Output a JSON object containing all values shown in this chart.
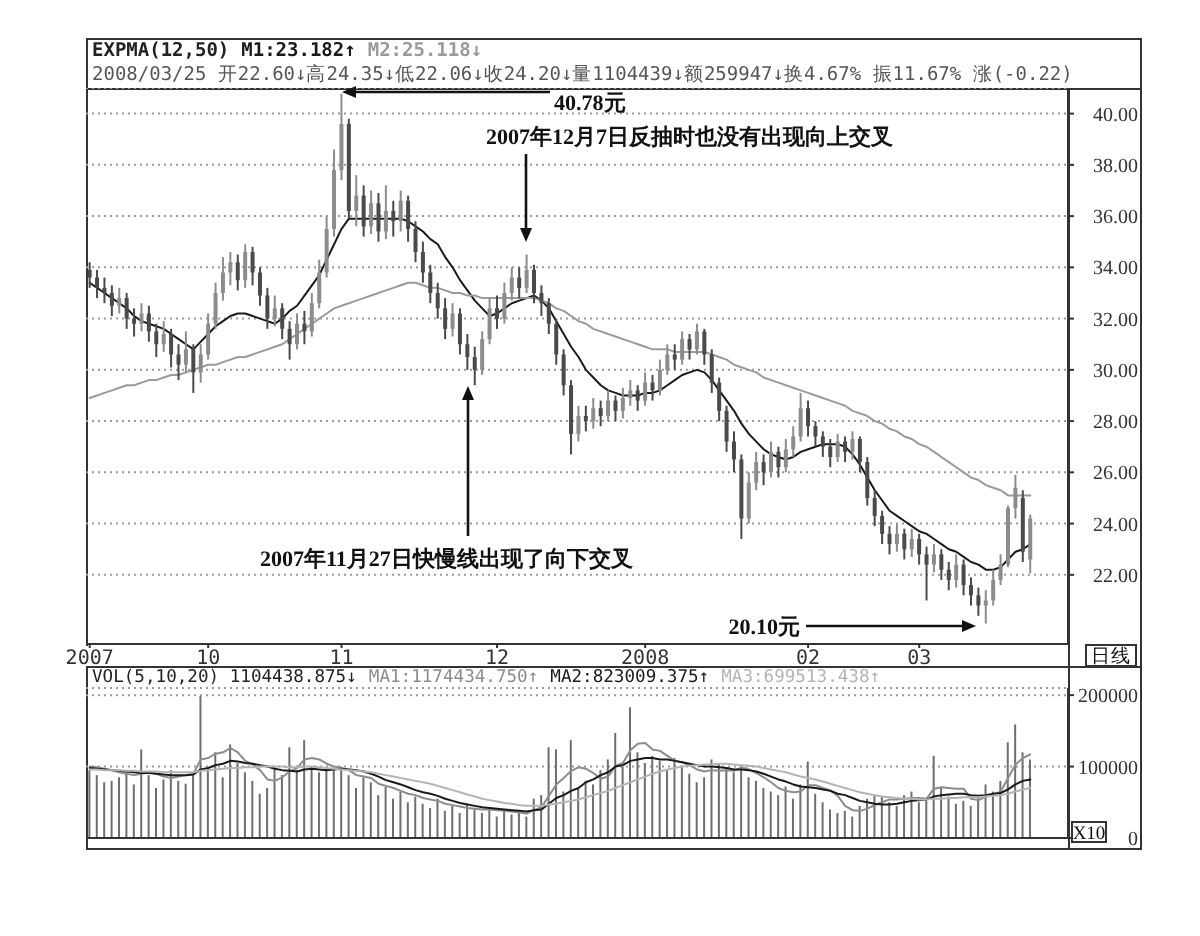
{
  "chart_data": [
    {
      "type": "candlestick",
      "title": "EXPMA(12,50)",
      "subtitle": "2008/03/25 开22.60↓高24.35↓低22.06↓收24.20↓量1104439↓额259947↓换4.67% 振11.67% 涨(-0.22)",
      "categories": [
        "2007",
        null,
        null,
        null,
        null,
        null,
        null,
        null,
        null,
        null,
        null,
        null,
        null,
        null,
        null,
        null,
        "10",
        null,
        null,
        null,
        null,
        null,
        null,
        null,
        null,
        null,
        null,
        null,
        null,
        null,
        null,
        null,
        null,
        null,
        "11",
        null,
        null,
        null,
        null,
        null,
        null,
        null,
        null,
        null,
        null,
        null,
        null,
        null,
        null,
        null,
        null,
        null,
        null,
        null,
        null,
        "12",
        null,
        null,
        null,
        null,
        null,
        null,
        null,
        null,
        null,
        null,
        null,
        null,
        null,
        null,
        null,
        null,
        null,
        null,
        null,
        "2008",
        null,
        null,
        null,
        null,
        null,
        null,
        null,
        null,
        null,
        null,
        null,
        null,
        null,
        null,
        null,
        null,
        null,
        null,
        null,
        null,
        null,
        "02",
        null,
        null,
        null,
        null,
        null,
        null,
        null,
        null,
        null,
        null,
        null,
        null,
        null,
        null,
        "03",
        null,
        null,
        null,
        null,
        null,
        null,
        null,
        null,
        null,
        null,
        null,
        null,
        null,
        null,
        null
      ],
      "ohlc": [
        [
          33.9,
          34.2,
          33.2,
          33.6
        ],
        [
          33.6,
          33.9,
          32.8,
          33.2
        ],
        [
          33.2,
          33.6,
          32.6,
          33.0
        ],
        [
          33.0,
          33.3,
          32.1,
          32.5
        ],
        [
          32.5,
          33.2,
          32.2,
          32.8
        ],
        [
          32.8,
          33.0,
          31.6,
          32.0
        ],
        [
          32.0,
          32.4,
          31.3,
          31.8
        ],
        [
          31.8,
          32.6,
          31.5,
          32.2
        ],
        [
          32.2,
          32.5,
          31.1,
          31.5
        ],
        [
          31.5,
          31.8,
          30.5,
          31.0
        ],
        [
          31.0,
          31.9,
          30.7,
          31.4
        ],
        [
          31.4,
          31.6,
          30.1,
          30.6
        ],
        [
          30.6,
          31.0,
          29.6,
          30.2
        ],
        [
          30.2,
          31.5,
          29.9,
          30.8
        ],
        [
          30.8,
          31.0,
          29.1,
          29.9
        ],
        [
          29.9,
          31.0,
          29.5,
          30.6
        ],
        [
          30.6,
          32.2,
          30.4,
          31.8
        ],
        [
          31.8,
          33.4,
          31.6,
          33.0
        ],
        [
          33.0,
          34.4,
          32.7,
          33.8
        ],
        [
          33.8,
          34.6,
          33.3,
          34.2
        ],
        [
          34.2,
          34.5,
          33.1,
          33.5
        ],
        [
          33.5,
          34.9,
          33.2,
          34.6
        ],
        [
          34.6,
          34.8,
          33.3,
          33.8
        ],
        [
          33.8,
          34.0,
          32.5,
          32.9
        ],
        [
          32.9,
          33.2,
          31.6,
          32.0
        ],
        [
          32.0,
          32.9,
          31.7,
          32.4
        ],
        [
          32.4,
          32.6,
          31.2,
          31.6
        ],
        [
          31.6,
          31.9,
          30.4,
          31.0
        ],
        [
          31.0,
          32.2,
          30.8,
          31.8
        ],
        [
          31.8,
          32.3,
          31.0,
          31.5
        ],
        [
          31.5,
          33.0,
          31.3,
          32.6
        ],
        [
          32.6,
          34.3,
          32.4,
          33.8
        ],
        [
          33.8,
          36.0,
          33.6,
          35.5
        ],
        [
          35.5,
          38.6,
          35.2,
          37.8
        ],
        [
          37.8,
          40.78,
          37.4,
          39.6
        ],
        [
          39.6,
          39.8,
          35.9,
          36.2
        ],
        [
          36.2,
          37.6,
          35.6,
          36.8
        ],
        [
          36.8,
          37.2,
          35.2,
          35.6
        ],
        [
          35.6,
          37.0,
          35.3,
          36.5
        ],
        [
          36.5,
          36.9,
          35.0,
          35.4
        ],
        [
          35.4,
          37.2,
          35.1,
          36.2
        ],
        [
          36.2,
          36.6,
          35.2,
          35.8
        ],
        [
          35.8,
          37.0,
          35.4,
          36.6
        ],
        [
          36.6,
          36.8,
          35.0,
          35.5
        ],
        [
          35.5,
          35.8,
          34.2,
          34.6
        ],
        [
          34.6,
          35.0,
          33.4,
          33.8
        ],
        [
          33.8,
          34.1,
          32.6,
          33.0
        ],
        [
          33.0,
          33.4,
          32.0,
          32.4
        ],
        [
          32.4,
          32.8,
          31.2,
          31.6
        ],
        [
          31.6,
          32.6,
          31.3,
          32.2
        ],
        [
          32.2,
          32.4,
          30.6,
          31.0
        ],
        [
          31.0,
          31.4,
          30.0,
          30.5
        ],
        [
          30.5,
          30.9,
          29.4,
          30.0
        ],
        [
          30.0,
          31.5,
          29.8,
          31.2
        ],
        [
          31.2,
          32.8,
          31.0,
          32.4
        ],
        [
          32.4,
          32.9,
          31.6,
          32.0
        ],
        [
          32.0,
          33.4,
          31.8,
          33.0
        ],
        [
          33.0,
          34.0,
          32.7,
          33.6
        ],
        [
          33.6,
          34.0,
          32.8,
          33.2
        ],
        [
          33.2,
          34.5,
          33.0,
          33.9
        ],
        [
          33.9,
          34.1,
          32.6,
          33.0
        ],
        [
          33.0,
          33.3,
          32.1,
          32.6
        ],
        [
          32.6,
          32.8,
          31.4,
          31.8
        ],
        [
          31.8,
          32.0,
          30.2,
          30.6
        ],
        [
          30.6,
          30.8,
          29.0,
          29.4
        ],
        [
          29.4,
          29.6,
          26.7,
          27.5
        ],
        [
          27.5,
          28.6,
          27.2,
          28.2
        ],
        [
          28.2,
          28.6,
          27.6,
          28.0
        ],
        [
          28.0,
          28.9,
          27.7,
          28.5
        ],
        [
          28.5,
          28.8,
          27.8,
          28.2
        ],
        [
          28.2,
          29.2,
          28.0,
          28.8
        ],
        [
          28.8,
          29.0,
          28.0,
          28.4
        ],
        [
          28.4,
          29.3,
          28.1,
          28.9
        ],
        [
          28.9,
          29.6,
          28.6,
          29.2
        ],
        [
          29.2,
          29.4,
          28.4,
          28.8
        ],
        [
          28.8,
          29.9,
          28.6,
          29.5
        ],
        [
          29.5,
          29.8,
          28.8,
          29.2
        ],
        [
          29.2,
          30.4,
          29.0,
          30.0
        ],
        [
          30.0,
          31.0,
          29.8,
          30.6
        ],
        [
          30.6,
          31.0,
          30.0,
          30.4
        ],
        [
          30.4,
          31.5,
          30.2,
          31.2
        ],
        [
          31.2,
          31.4,
          30.4,
          30.8
        ],
        [
          30.8,
          31.8,
          30.6,
          31.5
        ],
        [
          31.5,
          31.6,
          30.2,
          30.6
        ],
        [
          30.6,
          30.8,
          29.1,
          29.5
        ],
        [
          29.5,
          29.7,
          28.0,
          28.4
        ],
        [
          28.4,
          28.6,
          26.8,
          27.2
        ],
        [
          27.2,
          27.6,
          26.0,
          26.5
        ],
        [
          26.5,
          26.7,
          23.4,
          24.2
        ],
        [
          24.2,
          26.0,
          24.0,
          25.6
        ],
        [
          25.6,
          26.8,
          25.3,
          26.4
        ],
        [
          26.4,
          26.7,
          25.5,
          26.0
        ],
        [
          26.0,
          27.2,
          25.8,
          26.8
        ],
        [
          26.8,
          27.0,
          25.8,
          26.2
        ],
        [
          26.2,
          27.3,
          26.0,
          26.9
        ],
        [
          26.9,
          27.8,
          26.6,
          27.4
        ],
        [
          27.4,
          29.1,
          27.2,
          28.5
        ],
        [
          28.5,
          28.8,
          27.4,
          27.8
        ],
        [
          27.8,
          28.0,
          27.0,
          27.4
        ],
        [
          27.4,
          27.6,
          26.6,
          27.0
        ],
        [
          27.0,
          27.3,
          26.2,
          26.6
        ],
        [
          26.6,
          27.5,
          26.4,
          27.2
        ],
        [
          27.2,
          27.4,
          26.4,
          26.8
        ],
        [
          26.8,
          27.6,
          26.5,
          27.3
        ],
        [
          27.3,
          27.4,
          26.0,
          26.4
        ],
        [
          26.4,
          26.6,
          24.7,
          25.0
        ],
        [
          25.0,
          25.3,
          23.9,
          24.3
        ],
        [
          24.3,
          24.5,
          23.2,
          23.6
        ],
        [
          23.6,
          23.9,
          22.8,
          23.2
        ],
        [
          23.2,
          24.0,
          22.9,
          23.6
        ],
        [
          23.6,
          23.8,
          22.6,
          23.0
        ],
        [
          23.0,
          23.8,
          22.7,
          23.4
        ],
        [
          23.4,
          23.6,
          22.4,
          22.8
        ],
        [
          22.8,
          23.1,
          21.0,
          22.4
        ],
        [
          22.4,
          23.2,
          22.1,
          22.8
        ],
        [
          22.8,
          23.0,
          21.8,
          22.2
        ],
        [
          22.2,
          22.5,
          21.4,
          21.8
        ],
        [
          21.8,
          22.8,
          21.5,
          22.4
        ],
        [
          22.4,
          22.6,
          21.2,
          21.6
        ],
        [
          21.6,
          21.9,
          20.8,
          21.2
        ],
        [
          21.2,
          21.5,
          20.4,
          20.8
        ],
        [
          20.8,
          21.4,
          20.1,
          21.0
        ],
        [
          21.0,
          22.2,
          20.8,
          21.8
        ],
        [
          21.8,
          22.8,
          21.6,
          22.4
        ],
        [
          22.4,
          24.7,
          22.3,
          24.6
        ],
        [
          24.6,
          25.9,
          24.2,
          25.4
        ],
        [
          25.0,
          25.3,
          22.5,
          22.9
        ],
        [
          22.6,
          24.35,
          22.06,
          24.2
        ]
      ],
      "colors": [
        "#4a4a4a",
        "#4a4a4a",
        "#4a4a4a",
        "#4a4a4a",
        "#8c8c8c",
        "#4a4a4a",
        "#4a4a4a",
        "#8c8c8c",
        "#4a4a4a",
        "#4a4a4a",
        "#8c8c8c",
        "#4a4a4a",
        "#4a4a4a",
        "#8c8c8c",
        "#4a4a4a",
        "#8c8c8c",
        "#8c8c8c",
        "#8c8c8c",
        "#8c8c8c",
        "#8c8c8c",
        "#4a4a4a",
        "#8c8c8c",
        "#4a4a4a",
        "#4a4a4a",
        "#4a4a4a",
        "#8c8c8c",
        "#4a4a4a",
        "#4a4a4a",
        "#8c8c8c",
        "#4a4a4a",
        "#8c8c8c",
        "#8c8c8c",
        "#8c8c8c",
        "#8c8c8c",
        "#8c8c8c",
        "#4a4a4a",
        "#8c8c8c",
        "#4a4a4a",
        "#8c8c8c",
        "#4a4a4a",
        "#8c8c8c",
        "#4a4a4a",
        "#8c8c8c",
        "#4a4a4a",
        "#4a4a4a",
        "#4a4a4a",
        "#4a4a4a",
        "#4a4a4a",
        "#4a4a4a",
        "#8c8c8c",
        "#4a4a4a",
        "#4a4a4a",
        "#4a4a4a",
        "#8c8c8c",
        "#8c8c8c",
        "#4a4a4a",
        "#8c8c8c",
        "#8c8c8c",
        "#4a4a4a",
        "#8c8c8c",
        "#4a4a4a",
        "#4a4a4a",
        "#4a4a4a",
        "#4a4a4a",
        "#4a4a4a",
        "#4a4a4a",
        "#8c8c8c",
        "#4a4a4a",
        "#8c8c8c",
        "#4a4a4a",
        "#8c8c8c",
        "#4a4a4a",
        "#8c8c8c",
        "#8c8c8c",
        "#4a4a4a",
        "#8c8c8c",
        "#4a4a4a",
        "#8c8c8c",
        "#8c8c8c",
        "#4a4a4a",
        "#8c8c8c",
        "#4a4a4a",
        "#8c8c8c",
        "#4a4a4a",
        "#4a4a4a",
        "#4a4a4a",
        "#4a4a4a",
        "#4a4a4a",
        "#4a4a4a",
        "#8c8c8c",
        "#8c8c8c",
        "#4a4a4a",
        "#8c8c8c",
        "#4a4a4a",
        "#8c8c8c",
        "#8c8c8c",
        "#8c8c8c",
        "#4a4a4a",
        "#4a4a4a",
        "#4a4a4a",
        "#4a4a4a",
        "#8c8c8c",
        "#4a4a4a",
        "#8c8c8c",
        "#4a4a4a",
        "#4a4a4a",
        "#4a4a4a",
        "#4a4a4a",
        "#4a4a4a",
        "#8c8c8c",
        "#4a4a4a",
        "#8c8c8c",
        "#4a4a4a",
        "#4a4a4a",
        "#8c8c8c",
        "#4a4a4a",
        "#4a4a4a",
        "#8c8c8c",
        "#4a4a4a",
        "#4a4a4a",
        "#4a4a4a",
        "#8c8c8c",
        "#8c8c8c",
        "#8c8c8c",
        "#8c8c8c",
        "#8c8c8c",
        "#4a4a4a",
        "#8c8c8c"
      ],
      "series": [
        {
          "name": "M1:23.182↑",
          "type": "line",
          "color": "#1a1a1a",
          "values": [
            33.4,
            33.2,
            33.0,
            32.8,
            32.6,
            32.4,
            32.1,
            31.9,
            31.8,
            31.7,
            31.6,
            31.4,
            31.2,
            31.0,
            30.8,
            31.1,
            31.4,
            31.7,
            31.9,
            32.1,
            32.2,
            32.2,
            32.1,
            32.0,
            31.9,
            31.8,
            32.0,
            32.3,
            32.5,
            32.9,
            33.3,
            33.7,
            34.3,
            34.9,
            35.5,
            35.9,
            35.9,
            35.9,
            35.9,
            35.9,
            35.9,
            35.9,
            35.9,
            35.8,
            35.6,
            35.4,
            35.1,
            34.9,
            34.4,
            34.0,
            33.5,
            33.1,
            32.7,
            32.4,
            32.1,
            32.2,
            32.4,
            32.6,
            32.7,
            32.8,
            32.9,
            32.7,
            32.4,
            31.9,
            31.4,
            30.9,
            30.5,
            30.0,
            29.7,
            29.4,
            29.2,
            29.1,
            29.0,
            29.0,
            29.0,
            29.1,
            29.1,
            29.2,
            29.4,
            29.6,
            29.8,
            29.9,
            30.0,
            29.9,
            29.6,
            29.2,
            28.8,
            28.4,
            27.9,
            27.5,
            27.2,
            26.9,
            26.7,
            26.6,
            26.5,
            26.6,
            26.8,
            26.9,
            27.0,
            27.1,
            27.1,
            27.1,
            27.0,
            26.7,
            26.3,
            25.8,
            25.3,
            24.9,
            24.5,
            24.3,
            24.1,
            23.9,
            23.7,
            23.6,
            23.4,
            23.2,
            23.0,
            22.9,
            22.7,
            22.5,
            22.4,
            22.2,
            22.2,
            22.3,
            22.6,
            22.9,
            23.0,
            23.2
          ]
        },
        {
          "name": "M2:25.118↓",
          "type": "line",
          "color": "#9a9a9a",
          "values": [
            28.9,
            29.0,
            29.1,
            29.2,
            29.3,
            29.4,
            29.4,
            29.5,
            29.6,
            29.6,
            29.7,
            29.8,
            29.8,
            29.9,
            30.0,
            30.1,
            30.2,
            30.2,
            30.3,
            30.4,
            30.5,
            30.5,
            30.6,
            30.7,
            30.8,
            30.9,
            31.0,
            31.2,
            31.4,
            31.6,
            31.8,
            32.0,
            32.2,
            32.4,
            32.5,
            32.6,
            32.7,
            32.8,
            32.9,
            33.0,
            33.1,
            33.2,
            33.3,
            33.4,
            33.4,
            33.3,
            33.2,
            33.2,
            33.1,
            33.0,
            33.0,
            32.9,
            32.9,
            32.8,
            32.8,
            32.8,
            32.8,
            32.8,
            32.8,
            32.8,
            32.8,
            32.7,
            32.6,
            32.4,
            32.3,
            32.1,
            31.9,
            31.8,
            31.6,
            31.5,
            31.4,
            31.3,
            31.2,
            31.1,
            31.0,
            30.9,
            30.8,
            30.8,
            30.8,
            30.7,
            30.7,
            30.7,
            30.7,
            30.7,
            30.6,
            30.5,
            30.4,
            30.2,
            30.1,
            30.0,
            29.9,
            29.7,
            29.6,
            29.5,
            29.4,
            29.3,
            29.2,
            29.1,
            29.0,
            28.9,
            28.8,
            28.7,
            28.6,
            28.4,
            28.3,
            28.2,
            28.0,
            27.9,
            27.7,
            27.6,
            27.4,
            27.3,
            27.1,
            27.0,
            26.8,
            26.6,
            26.4,
            26.2,
            26.0,
            25.8,
            25.7,
            25.5,
            25.4,
            25.3,
            25.1,
            25.1,
            25.1,
            25.1
          ]
        }
      ],
      "ylim": [
        19.3,
        41.0
      ],
      "yticks": [
        {
          "value": 22,
          "label": "22.00"
        },
        {
          "value": 24,
          "label": "24.00"
        },
        {
          "value": 26,
          "label": "26.00"
        },
        {
          "value": 28,
          "label": "28.00"
        },
        {
          "value": 30,
          "label": "30.00"
        },
        {
          "value": 32,
          "label": "32.00"
        },
        {
          "value": 34,
          "label": "34.00"
        },
        {
          "value": 36,
          "label": "36.00"
        },
        {
          "value": 38,
          "label": "38.00"
        },
        {
          "value": 40,
          "label": "40.00"
        }
      ],
      "grid": "y",
      "legend": "top left",
      "annotations": [
        "40.78元",
        "20.10元",
        "2007年12月7日反抽时也没有出现向上交叉",
        "2007年11月27日快慢线出现了向下交叉",
        "日线"
      ]
    },
    {
      "type": "bar",
      "title": "VOL(5,10,20) 1104438.875↓",
      "categories": [
        "2007",
        null,
        null,
        null,
        null,
        null,
        null,
        null,
        null,
        null,
        null,
        null,
        null,
        null,
        null,
        null,
        "10",
        null,
        null,
        null,
        null,
        null,
        null,
        null,
        null,
        null,
        null,
        null,
        null,
        null,
        null,
        null,
        null,
        null,
        "11",
        null,
        null,
        null,
        null,
        null,
        null,
        null,
        null,
        null,
        null,
        null,
        null,
        null,
        null,
        null,
        null,
        null,
        null,
        null,
        null,
        "12",
        null,
        null,
        null,
        null,
        null,
        null,
        null,
        null,
        null,
        null,
        null,
        null,
        null,
        null,
        null,
        null,
        null,
        null,
        null,
        "2008",
        null,
        null,
        null,
        null,
        null,
        null,
        null,
        null,
        null,
        null,
        null,
        null,
        null,
        null,
        null,
        null,
        null,
        null,
        null,
        null,
        null,
        "02",
        null,
        null,
        null,
        null,
        null,
        null,
        null,
        null,
        null,
        null,
        null,
        null,
        null,
        null,
        "03",
        null,
        null,
        null,
        null,
        null,
        null,
        null,
        null,
        null,
        null,
        null,
        null,
        null,
        null,
        null
      ],
      "series": [
        {
          "color": "#6e6e6e",
          "values": [
            95000,
            88000,
            78000,
            80000,
            85000,
            92000,
            75000,
            124000,
            88000,
            70000,
            82000,
            95000,
            80000,
            76000,
            90000,
            199000,
            98000,
            120000,
            85000,
            131000,
            105000,
            92000,
            80000,
            62000,
            70000,
            100000,
            88000,
            127000,
            95000,
            137000,
            100000,
            92000,
            98000,
            95000,
            100000,
            88000,
            70000,
            85000,
            78000,
            60000,
            72000,
            55000,
            65000,
            50000,
            58000,
            48000,
            42000,
            55000,
            38000,
            45000,
            35000,
            48000,
            40000,
            35000,
            42000,
            30000,
            38000,
            33000,
            36000,
            30000,
            55000,
            60000,
            127000,
            124000,
            65000,
            137000,
            70000,
            80000,
            75000,
            95000,
            110000,
            147000,
            100000,
            183000,
            120000,
            105000,
            115000,
            108000,
            95000,
            112000,
            100000,
            90000,
            78000,
            85000,
            110000,
            105000,
            98000,
            92000,
            100000,
            85000,
            80000,
            70000,
            65000,
            60000,
            72000,
            55000,
            75000,
            107000,
            62000,
            50000,
            40000,
            35000,
            38000,
            30000,
            45000,
            55000,
            60000,
            58000,
            50000,
            45000,
            60000,
            65000,
            50000,
            55000,
            115000,
            70000,
            58000,
            48000,
            52000,
            45000,
            60000,
            75000,
            65000,
            80000,
            134000,
            159000,
            120000,
            110000
          ]
        },
        {
          "name": "MA1:1174434.750↑",
          "type": "line",
          "color": "#8c8c8c",
          "values": [
            100000,
            99000,
            97000,
            95000,
            92000,
            90000,
            88000,
            90000,
            92000,
            90000,
            86000,
            84000,
            86000,
            88000,
            90000,
            110000,
            112000,
            118000,
            120000,
            126000,
            120000,
            108000,
            103000,
            95000,
            82000,
            80000,
            85000,
            93000,
            98000,
            110000,
            112000,
            110000,
            104000,
            100000,
            98000,
            95000,
            88000,
            86000,
            84000,
            76000,
            73000,
            70000,
            66000,
            62000,
            60000,
            56000,
            54000,
            52000,
            48000,
            46000,
            44000,
            42000,
            41000,
            40000,
            40000,
            39000,
            38000,
            37000,
            36000,
            34000,
            39000,
            43000,
            59000,
            75000,
            84000,
            94000,
            99000,
            97000,
            91000,
            83000,
            86000,
            101000,
            105000,
            123000,
            132000,
            133000,
            124000,
            122000,
            115000,
            108000,
            106000,
            102000,
            96000,
            93000,
            95000,
            94000,
            95000,
            94000,
            99000,
            96000,
            91000,
            85000,
            78000,
            70000,
            66000,
            64000,
            65000,
            74000,
            74000,
            70000,
            67000,
            59000,
            45000,
            39000,
            38000,
            41000,
            46000,
            50000,
            54000,
            54000,
            55000,
            56000,
            56000,
            55000,
            69000,
            71000,
            70000,
            69000,
            69000,
            55000,
            53000,
            58000,
            61000,
            65000,
            84000,
            103000,
            112000,
            117000
          ]
        },
        {
          "name": "MA2:823009.375↑",
          "type": "line",
          "color": "#1a1a1a",
          "values": [
            98000,
            97000,
            96000,
            95000,
            94000,
            93000,
            92000,
            91000,
            91000,
            90000,
            89000,
            88000,
            88000,
            88000,
            89000,
            96000,
            98000,
            102000,
            104000,
            108000,
            107000,
            105000,
            104000,
            102000,
            100000,
            97000,
            95000,
            94000,
            93000,
            96000,
            97000,
            96000,
            95000,
            96000,
            97000,
            96000,
            95000,
            93000,
            90000,
            86000,
            81000,
            78000,
            75000,
            71000,
            67000,
            64000,
            62000,
            59000,
            55000,
            52000,
            49000,
            47000,
            45000,
            43000,
            42000,
            41000,
            40000,
            39000,
            38000,
            37000,
            39000,
            40000,
            48000,
            56000,
            60000,
            66000,
            70000,
            78000,
            82000,
            88000,
            92000,
            100000,
            102000,
            108000,
            110000,
            112000,
            112000,
            110000,
            110000,
            108000,
            106000,
            104000,
            102000,
            100000,
            100000,
            99000,
            98000,
            96000,
            96000,
            95000,
            93000,
            90000,
            86000,
            82000,
            79000,
            75000,
            72000,
            71000,
            70000,
            68000,
            66000,
            62000,
            60000,
            56000,
            52000,
            50000,
            48000,
            47000,
            47000,
            48000,
            50000,
            52000,
            53000,
            54000,
            58000,
            60000,
            61000,
            62000,
            62000,
            60000,
            59000,
            60000,
            62000,
            63000,
            68000,
            75000,
            80000,
            82000
          ]
        },
        {
          "name": "MA3:699513.438↑",
          "type": "line",
          "color": "#b4b4b4",
          "values": [
            96000,
            96000,
            95000,
            95000,
            95000,
            94000,
            94000,
            93000,
            93000,
            93000,
            92000,
            92000,
            92000,
            92000,
            92000,
            94000,
            95000,
            96000,
            97000,
            98000,
            98000,
            99000,
            99000,
            100000,
            100000,
            100000,
            100000,
            99000,
            99000,
            100000,
            100000,
            99000,
            98000,
            97000,
            96000,
            95000,
            94000,
            93000,
            92000,
            90000,
            88000,
            86000,
            84000,
            82000,
            80000,
            78000,
            76000,
            73000,
            70000,
            67000,
            64000,
            61000,
            58000,
            55000,
            53000,
            51000,
            49000,
            48000,
            46000,
            45000,
            45000,
            45000,
            47000,
            48000,
            50000,
            52000,
            54000,
            57000,
            60000,
            63000,
            66000,
            70000,
            74000,
            78000,
            82000,
            86000,
            90000,
            93000,
            96000,
            98000,
            100000,
            101000,
            102000,
            103000,
            103000,
            104000,
            104000,
            103000,
            102000,
            101000,
            100000,
            98000,
            96000,
            94000,
            92000,
            89000,
            86000,
            84000,
            82000,
            79000,
            76000,
            73000,
            70000,
            67000,
            64000,
            62000,
            60000,
            58000,
            57000,
            56000,
            55000,
            55000,
            54000,
            54000,
            55000,
            55000,
            56000,
            56000,
            57000,
            57000,
            57000,
            58000,
            59000,
            60000,
            62000,
            65000,
            68000,
            70000
          ]
        }
      ],
      "ylim": [
        0,
        210000
      ],
      "yticks": [
        0,
        100000,
        200000
      ],
      "grid": "y",
      "legend": "top",
      "tick_labels": "y",
      "annotations": [
        "X10"
      ]
    }
  ]
}
